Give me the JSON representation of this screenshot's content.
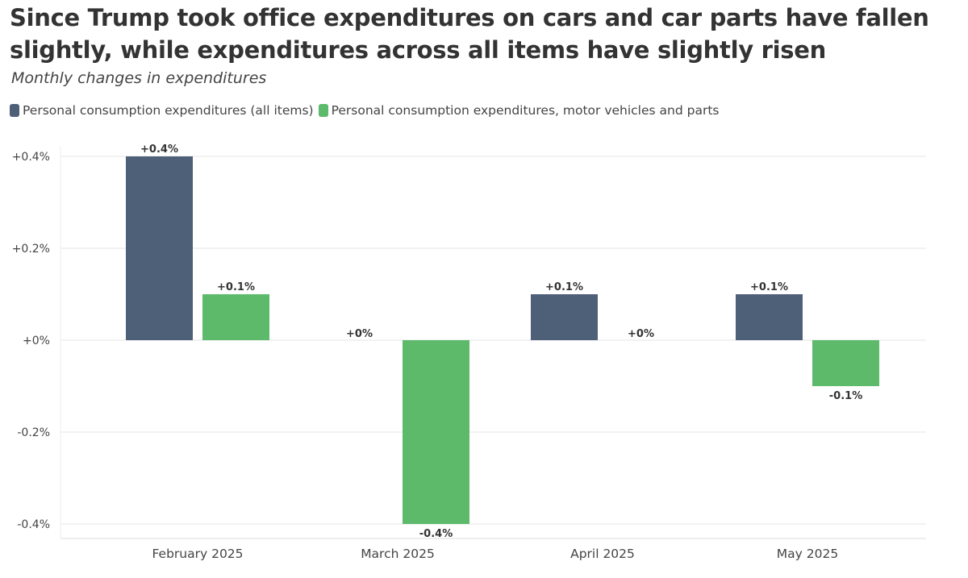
{
  "title": "Since Trump took office expenditures on cars and car parts have fallen slightly, while expenditures across all items have slightly risen",
  "subtitle": "Monthly changes in expenditures",
  "colors": {
    "all_items": "#4e5f78",
    "motor_vehicles": "#5dba6a",
    "grid": "#e6e6e6",
    "axis_text": "#444444",
    "label_text": "#333333"
  },
  "chart_data": {
    "type": "bar",
    "title": "Since Trump took office expenditures on cars and car parts have fallen slightly, while expenditures across all items have slightly risen",
    "subtitle": "Monthly changes in expenditures",
    "xlabel": "",
    "ylabel": "",
    "categories": [
      "February 2025",
      "March 2025",
      "April 2025",
      "May 2025"
    ],
    "series": [
      {
        "name": "Personal consumption expenditures (all items)",
        "color": "#4e5f78",
        "values": [
          0.4,
          0,
          0.1,
          0.1
        ],
        "labels": [
          "+0.4%",
          "+0%",
          "+0.1%",
          "+0.1%"
        ]
      },
      {
        "name": "Personal consumption expenditures, motor vehicles and parts",
        "color": "#5dba6a",
        "values": [
          0.1,
          -0.4,
          0,
          -0.1
        ],
        "labels": [
          "+0.1%",
          "-0.4%",
          "+0%",
          "-0.1%"
        ]
      }
    ],
    "yticks": [
      0.4,
      0.2,
      0,
      -0.2,
      -0.4
    ],
    "ytick_labels": [
      "+0.4%",
      "+0.2%",
      "+0%",
      "-0.2%",
      "-0.4%"
    ],
    "ylim": [
      -0.4,
      0.4
    ],
    "grid": true,
    "legend_position": "top-left"
  }
}
